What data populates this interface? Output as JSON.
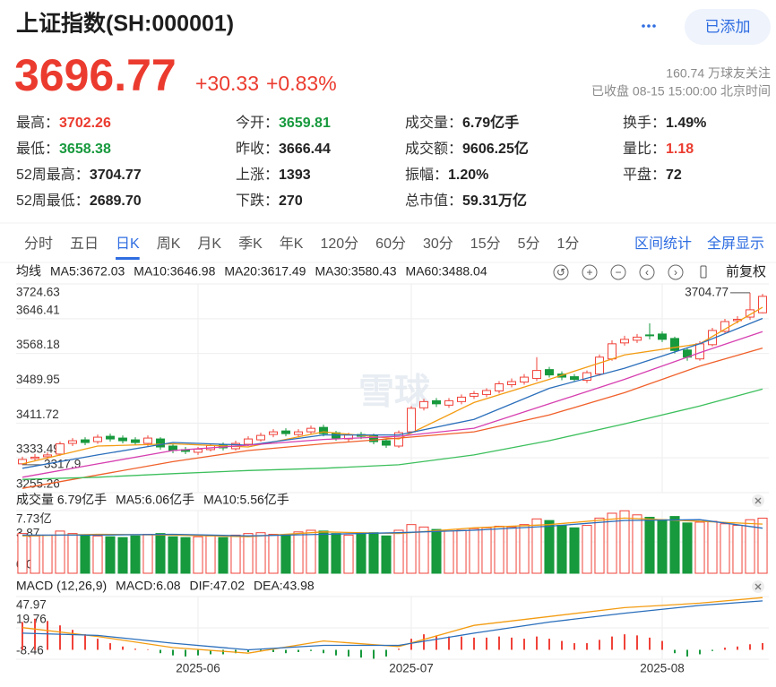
{
  "header": {
    "title": "上证指数(SH:000001)",
    "added": "已添加"
  },
  "quote": {
    "price": "3696.77",
    "change": "+30.33",
    "pct": "+0.83%",
    "followers": "160.74 万球友关注",
    "status": "已收盘 08-15 15:00:00 北京时间"
  },
  "stats": [
    [
      {
        "label": "最高：",
        "value": "3702.26",
        "tone": "up"
      },
      {
        "label": "今开：",
        "value": "3659.81",
        "tone": "down"
      },
      {
        "label": "成交量：",
        "value": "6.79亿手"
      },
      {
        "label": "换手：",
        "value": "1.49%"
      }
    ],
    [
      {
        "label": "最低：",
        "value": "3658.38",
        "tone": "down"
      },
      {
        "label": "昨收：",
        "value": "3666.44"
      },
      {
        "label": "成交额：",
        "value": "9606.25亿"
      },
      {
        "label": "量比：",
        "value": "1.18",
        "tone": "up"
      }
    ],
    [
      {
        "label": "52周最高：",
        "value": "3704.77"
      },
      {
        "label": "上涨：",
        "value": "1393"
      },
      {
        "label": "振幅：",
        "value": "1.20%"
      },
      {
        "label": "平盘：",
        "value": "72"
      }
    ],
    [
      {
        "label": "52周最低：",
        "value": "2689.70"
      },
      {
        "label": "下跌：",
        "value": "270"
      },
      {
        "label": "总市值：",
        "value": "59.31万亿"
      }
    ]
  ],
  "tabs": {
    "items": [
      "分时",
      "五日",
      "日K",
      "周K",
      "月K",
      "季K",
      "年K",
      "120分",
      "60分",
      "30分",
      "15分",
      "5分",
      "1分"
    ],
    "active": 2,
    "tools": [
      "区间统计",
      "全屏显示"
    ]
  },
  "chart_data": [
    {
      "type": "candlestick",
      "legend_title": "均线",
      "adjust": "前复权",
      "watermark": "雪球",
      "up_color": "#f0433a",
      "down_color": "#17993d",
      "open": [
        3320,
        3332,
        3336,
        3342,
        3366,
        3374,
        3370,
        3382,
        3378,
        3374,
        3366,
        3376,
        3360,
        3352,
        3346,
        3352,
        3362,
        3354,
        3364,
        3374,
        3386,
        3394,
        3386,
        3392,
        3402,
        3390,
        3376,
        3386,
        3384,
        3372,
        3360,
        3392,
        3446,
        3462,
        3452,
        3460,
        3472,
        3476,
        3484,
        3498,
        3504,
        3512,
        3532,
        3522,
        3516,
        3508,
        3522,
        3556,
        3592,
        3598,
        3610,
        3612,
        3602,
        3576,
        3556,
        3588,
        3618,
        3642,
        3650,
        3659.81
      ],
      "high": [
        3336,
        3342,
        3346,
        3370,
        3378,
        3380,
        3386,
        3388,
        3384,
        3380,
        3384,
        3380,
        3364,
        3358,
        3358,
        3366,
        3368,
        3372,
        3382,
        3390,
        3398,
        3400,
        3398,
        3406,
        3408,
        3394,
        3390,
        3392,
        3388,
        3376,
        3395,
        3450,
        3466,
        3468,
        3468,
        3476,
        3484,
        3490,
        3506,
        3512,
        3522,
        3560,
        3538,
        3528,
        3522,
        3530,
        3566,
        3598,
        3608,
        3612,
        3636,
        3618,
        3606,
        3580,
        3596,
        3626,
        3646,
        3652,
        3704.77,
        3702.26
      ],
      "low": [
        3317.9,
        3326,
        3330,
        3338,
        3360,
        3362,
        3365,
        3370,
        3366,
        3362,
        3360,
        3352,
        3344,
        3342,
        3340,
        3348,
        3350,
        3350,
        3360,
        3370,
        3380,
        3382,
        3380,
        3386,
        3382,
        3372,
        3370,
        3376,
        3364,
        3356,
        3356,
        3388,
        3440,
        3448,
        3446,
        3454,
        3466,
        3470,
        3478,
        3492,
        3498,
        3506,
        3514,
        3508,
        3504,
        3502,
        3518,
        3552,
        3586,
        3592,
        3600,
        3594,
        3568,
        3552,
        3552,
        3584,
        3614,
        3636,
        3644,
        3658.38
      ],
      "close": [
        3330,
        3335,
        3340,
        3365,
        3372,
        3368,
        3380,
        3376,
        3372,
        3368,
        3378,
        3358,
        3350,
        3348,
        3353,
        3361,
        3356,
        3366,
        3376,
        3384,
        3392,
        3388,
        3392,
        3400,
        3388,
        3378,
        3385,
        3382,
        3370,
        3362,
        3390,
        3445,
        3460,
        3455,
        3462,
        3470,
        3478,
        3485,
        3500,
        3505,
        3515,
        3530,
        3520,
        3515,
        3510,
        3525,
        3560,
        3590,
        3600,
        3605,
        3608,
        3600,
        3575,
        3560,
        3590,
        3620,
        3640,
        3645,
        3666.44,
        3696.77
      ],
      "ylim": [
        3255.26,
        3724.63
      ],
      "yticks": [
        3724.63,
        3646.41,
        3568.18,
        3489.95,
        3411.72,
        3333.49,
        3255.26
      ],
      "series": [
        {
          "name": "MA5:3672.03",
          "color": "#f39c12",
          "x": [
            0,
            6,
            12,
            18,
            24,
            30,
            36,
            42,
            48,
            54,
            59
          ],
          "values": [
            3320,
            3360,
            3365,
            3358,
            3392,
            3376,
            3458,
            3510,
            3565,
            3590,
            3672.03
          ]
        },
        {
          "name": "MA10:3646.98",
          "color": "#2a6ebb",
          "x": [
            0,
            6,
            12,
            18,
            24,
            30,
            36,
            42,
            48,
            54,
            59
          ],
          "values": [
            3310,
            3340,
            3368,
            3362,
            3385,
            3385,
            3420,
            3490,
            3535,
            3590,
            3646.98
          ]
        },
        {
          "name": "MA20:3617.49",
          "color": "#d63fb0",
          "x": [
            0,
            6,
            12,
            18,
            24,
            30,
            36,
            42,
            48,
            54,
            59
          ],
          "values": [
            3290,
            3320,
            3350,
            3362,
            3375,
            3382,
            3400,
            3455,
            3510,
            3570,
            3617.49
          ]
        },
        {
          "name": "MA30:3580.43",
          "color": "#f0602a",
          "x": [
            0,
            6,
            12,
            18,
            24,
            30,
            36,
            42,
            48,
            54,
            59
          ],
          "values": [
            3265,
            3295,
            3325,
            3350,
            3365,
            3378,
            3392,
            3430,
            3480,
            3540,
            3580.43
          ]
        },
        {
          "name": "MA60:3488.04",
          "color": "#3cbf5c",
          "x": [
            0,
            6,
            12,
            18,
            24,
            30,
            36,
            42,
            48,
            54,
            59
          ],
          "values": [
            3285,
            3290,
            3298,
            3305,
            3310,
            3318,
            3340,
            3372,
            3410,
            3450,
            3488.04
          ]
        }
      ]
    },
    {
      "type": "bar",
      "legend_title": "成交量 6.79亿手",
      "up_color": "#f0433a",
      "down_color": "#17993d",
      "values": [
        4.9,
        4.6,
        4.7,
        5.2,
        4.9,
        4.7,
        4.6,
        4.5,
        4.4,
        4.6,
        4.8,
        4.9,
        4.5,
        4.4,
        4.5,
        4.6,
        4.4,
        4.7,
        4.9,
        5.0,
        4.8,
        4.7,
        5.1,
        5.3,
        5.2,
        4.9,
        4.7,
        4.8,
        5.0,
        4.6,
        5.3,
        6.0,
        5.7,
        5.4,
        5.2,
        5.3,
        5.5,
        5.6,
        5.8,
        5.7,
        6.0,
        6.7,
        6.5,
        5.9,
        5.6,
        5.9,
        6.8,
        7.4,
        7.7,
        7.2,
        6.9,
        6.6,
        7.0,
        6.2,
        6.3,
        6.4,
        6.1,
        5.9,
        6.6,
        6.79
      ],
      "ylim": [
        0,
        7.73
      ],
      "yticks": [
        {
          "value": 7.73,
          "label": "7.73亿"
        },
        3.87,
        {
          "value": 0,
          "label": "0.00"
        }
      ],
      "series": [
        {
          "name": "MA5:6.06亿手",
          "color": "#f39c12",
          "x": [
            0,
            6,
            12,
            18,
            24,
            30,
            36,
            42,
            48,
            54,
            59
          ],
          "values": [
            4.6,
            4.8,
            4.7,
            4.5,
            5.1,
            4.9,
            5.6,
            6.0,
            6.8,
            6.4,
            6.06
          ]
        },
        {
          "name": "MA10:5.56亿手",
          "color": "#2a6ebb",
          "x": [
            0,
            6,
            12,
            18,
            24,
            30,
            36,
            42,
            48,
            54,
            59
          ],
          "values": [
            4.7,
            4.7,
            4.8,
            4.6,
            4.8,
            5.0,
            5.3,
            5.8,
            6.5,
            6.6,
            5.56
          ]
        }
      ]
    },
    {
      "type": "bar",
      "legend_title": "MACD (12,26,9)",
      "bar_name": "MACD:6.08",
      "bar_color": "#e53935",
      "up_color": "#f0433a",
      "down_color": "#17993d",
      "values": [
        25,
        28,
        26,
        22,
        18,
        14,
        10,
        6,
        3,
        1,
        0.5,
        -3,
        -5,
        -6,
        -5,
        -4,
        -4,
        -3,
        -2,
        -1,
        -2,
        -3,
        -2,
        -1,
        -3,
        -5,
        -6,
        -7,
        -8,
        -6,
        1,
        10,
        14,
        13,
        12,
        12,
        11,
        11,
        12,
        11,
        10,
        12,
        10,
        8,
        6,
        6,
        9,
        12,
        14,
        13,
        11,
        8,
        -3,
        -6,
        -4,
        -1,
        2,
        3,
        5,
        6.08
      ],
      "ylim": [
        -8.46,
        47.97
      ],
      "yticks": [
        47.97,
        19.76,
        -8.46
      ],
      "xticks": [
        {
          "value": 14,
          "label": "2025-06"
        },
        {
          "value": 31,
          "label": "2025-07"
        },
        {
          "value": 51,
          "label": "2025-08"
        }
      ],
      "series": [
        {
          "name": "DIF:47.02",
          "color": "#f39c12",
          "x": [
            0,
            6,
            12,
            18,
            24,
            30,
            36,
            42,
            48,
            54,
            59
          ],
          "values": [
            20,
            12,
            2,
            -3,
            8,
            3,
            22,
            30,
            38,
            42,
            47.02
          ]
        },
        {
          "name": "DEA:43.98",
          "color": "#2a6ebb",
          "x": [
            0,
            6,
            12,
            18,
            24,
            30,
            36,
            42,
            48,
            54,
            59
          ],
          "values": [
            15,
            13,
            6,
            0,
            4,
            4,
            15,
            25,
            33,
            40,
            43.98
          ]
        }
      ]
    }
  ]
}
